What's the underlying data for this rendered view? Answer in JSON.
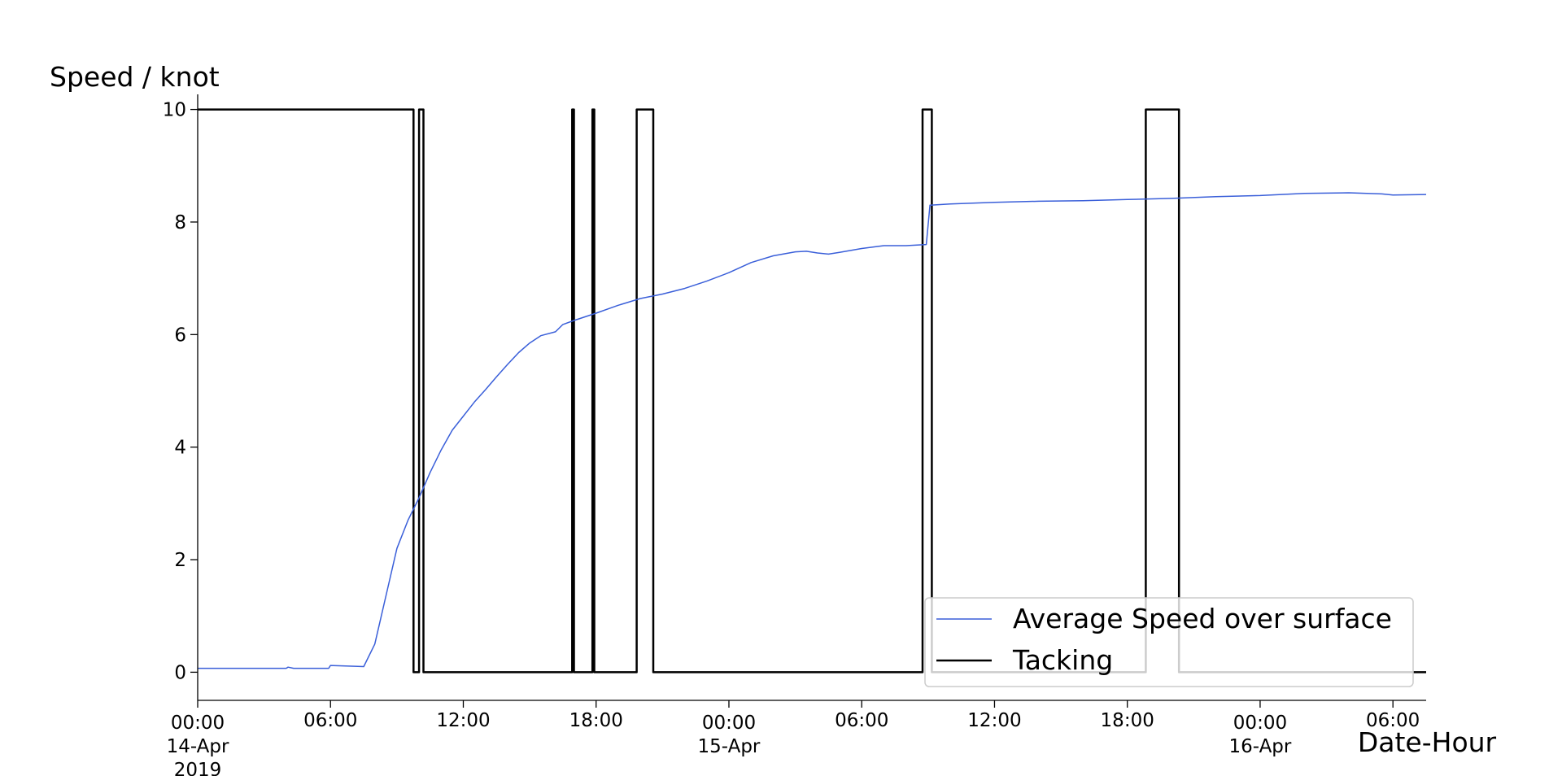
{
  "chart_data": {
    "type": "line",
    "title": "",
    "xlabel": "Date-Hour",
    "ylabel": "Speed / knot",
    "x_unit": "datetime",
    "xlim": [
      "2019-04-14 00:00",
      "2019-04-16 07:30"
    ],
    "ylim": [
      -0.5,
      10.5
    ],
    "grid": false,
    "legend_position": "lower-right",
    "y_ticks": [
      0,
      2,
      4,
      6,
      8,
      10
    ],
    "x_ticks": [
      {
        "t": "2019-04-14 00:00",
        "lines": [
          "00:00",
          "14-Apr",
          "2019"
        ]
      },
      {
        "t": "2019-04-14 06:00",
        "lines": [
          "06:00"
        ]
      },
      {
        "t": "2019-04-14 12:00",
        "lines": [
          "12:00"
        ]
      },
      {
        "t": "2019-04-14 18:00",
        "lines": [
          "18:00"
        ]
      },
      {
        "t": "2019-04-15 00:00",
        "lines": [
          "00:00",
          "15-Apr"
        ]
      },
      {
        "t": "2019-04-15 06:00",
        "lines": [
          "06:00"
        ]
      },
      {
        "t": "2019-04-15 12:00",
        "lines": [
          "12:00"
        ]
      },
      {
        "t": "2019-04-15 18:00",
        "lines": [
          "18:00"
        ]
      },
      {
        "t": "2019-04-16 00:00",
        "lines": [
          "00:00",
          "16-Apr"
        ]
      },
      {
        "t": "2019-04-16 06:00",
        "lines": [
          "06:00"
        ]
      }
    ],
    "series": [
      {
        "name": "Average Speed over surface",
        "color": "#3a5fd9",
        "points": [
          [
            "2019-04-14 00:00",
            0.07
          ],
          [
            "2019-04-14 04:00",
            0.07
          ],
          [
            "2019-04-14 04:05",
            0.09
          ],
          [
            "2019-04-14 04:20",
            0.07
          ],
          [
            "2019-04-14 05:55",
            0.07
          ],
          [
            "2019-04-14 06:00",
            0.12
          ],
          [
            "2019-04-14 07:30",
            0.1
          ],
          [
            "2019-04-14 08:00",
            0.5
          ],
          [
            "2019-04-14 08:30",
            1.35
          ],
          [
            "2019-04-14 09:00",
            2.2
          ],
          [
            "2019-04-14 09:30",
            2.7
          ],
          [
            "2019-04-14 10:00",
            3.1
          ],
          [
            "2019-04-14 10:30",
            3.55
          ],
          [
            "2019-04-14 11:00",
            3.95
          ],
          [
            "2019-04-14 11:30",
            4.3
          ],
          [
            "2019-04-14 12:00",
            4.55
          ],
          [
            "2019-04-14 12:30",
            4.8
          ],
          [
            "2019-04-14 13:00",
            5.02
          ],
          [
            "2019-04-14 13:30",
            5.25
          ],
          [
            "2019-04-14 14:00",
            5.47
          ],
          [
            "2019-04-14 14:30",
            5.68
          ],
          [
            "2019-04-14 15:00",
            5.85
          ],
          [
            "2019-04-14 15:30",
            5.98
          ],
          [
            "2019-04-14 16:10",
            6.05
          ],
          [
            "2019-04-14 16:30",
            6.18
          ],
          [
            "2019-04-14 17:00",
            6.25
          ],
          [
            "2019-04-14 18:00",
            6.38
          ],
          [
            "2019-04-14 19:00",
            6.52
          ],
          [
            "2019-04-14 20:00",
            6.64
          ],
          [
            "2019-04-14 21:00",
            6.72
          ],
          [
            "2019-04-14 22:00",
            6.82
          ],
          [
            "2019-04-14 23:00",
            6.95
          ],
          [
            "2019-04-15 00:00",
            7.1
          ],
          [
            "2019-04-15 01:00",
            7.28
          ],
          [
            "2019-04-15 02:00",
            7.4
          ],
          [
            "2019-04-15 03:00",
            7.47
          ],
          [
            "2019-04-15 03:30",
            7.48
          ],
          [
            "2019-04-15 04:00",
            7.45
          ],
          [
            "2019-04-15 04:30",
            7.43
          ],
          [
            "2019-04-15 05:00",
            7.46
          ],
          [
            "2019-04-15 06:00",
            7.53
          ],
          [
            "2019-04-15 07:00",
            7.58
          ],
          [
            "2019-04-15 08:00",
            7.58
          ],
          [
            "2019-04-15 08:55",
            7.6
          ],
          [
            "2019-04-15 09:05",
            8.3
          ],
          [
            "2019-04-15 10:00",
            8.32
          ],
          [
            "2019-04-15 12:00",
            8.35
          ],
          [
            "2019-04-15 14:00",
            8.37
          ],
          [
            "2019-04-15 16:00",
            8.38
          ],
          [
            "2019-04-15 18:00",
            8.4
          ],
          [
            "2019-04-15 20:00",
            8.42
          ],
          [
            "2019-04-15 22:00",
            8.45
          ],
          [
            "2019-04-16 00:00",
            8.47
          ],
          [
            "2019-04-16 02:00",
            8.51
          ],
          [
            "2019-04-16 04:00",
            8.52
          ],
          [
            "2019-04-16 05:30",
            8.5
          ],
          [
            "2019-04-16 06:00",
            8.48
          ],
          [
            "2019-04-16 07:30",
            8.49
          ]
        ]
      },
      {
        "name": "Tacking",
        "color": "#000000",
        "step_points": [
          [
            "2019-04-14 00:00",
            10
          ],
          [
            "2019-04-14 09:45",
            10
          ],
          [
            "2019-04-14 09:45",
            0
          ],
          [
            "2019-04-14 10:00",
            0
          ],
          [
            "2019-04-14 10:00",
            10
          ],
          [
            "2019-04-14 10:12",
            10
          ],
          [
            "2019-04-14 10:12",
            0
          ],
          [
            "2019-04-14 16:55",
            0
          ],
          [
            "2019-04-14 16:55",
            10
          ],
          [
            "2019-04-14 17:00",
            10
          ],
          [
            "2019-04-14 17:00",
            0
          ],
          [
            "2019-04-14 17:50",
            0
          ],
          [
            "2019-04-14 17:50",
            10
          ],
          [
            "2019-04-14 17:55",
            10
          ],
          [
            "2019-04-14 17:55",
            0
          ],
          [
            "2019-04-14 19:50",
            0
          ],
          [
            "2019-04-14 19:50",
            10
          ],
          [
            "2019-04-14 20:35",
            10
          ],
          [
            "2019-04-14 20:35",
            0
          ],
          [
            "2019-04-15 08:45",
            0
          ],
          [
            "2019-04-15 08:45",
            10
          ],
          [
            "2019-04-15 09:10",
            10
          ],
          [
            "2019-04-15 09:10",
            0
          ],
          [
            "2019-04-15 18:50",
            0
          ],
          [
            "2019-04-15 18:50",
            10
          ],
          [
            "2019-04-15 20:20",
            10
          ],
          [
            "2019-04-15 20:20",
            0
          ],
          [
            "2019-04-16 07:30",
            0
          ]
        ]
      }
    ]
  }
}
